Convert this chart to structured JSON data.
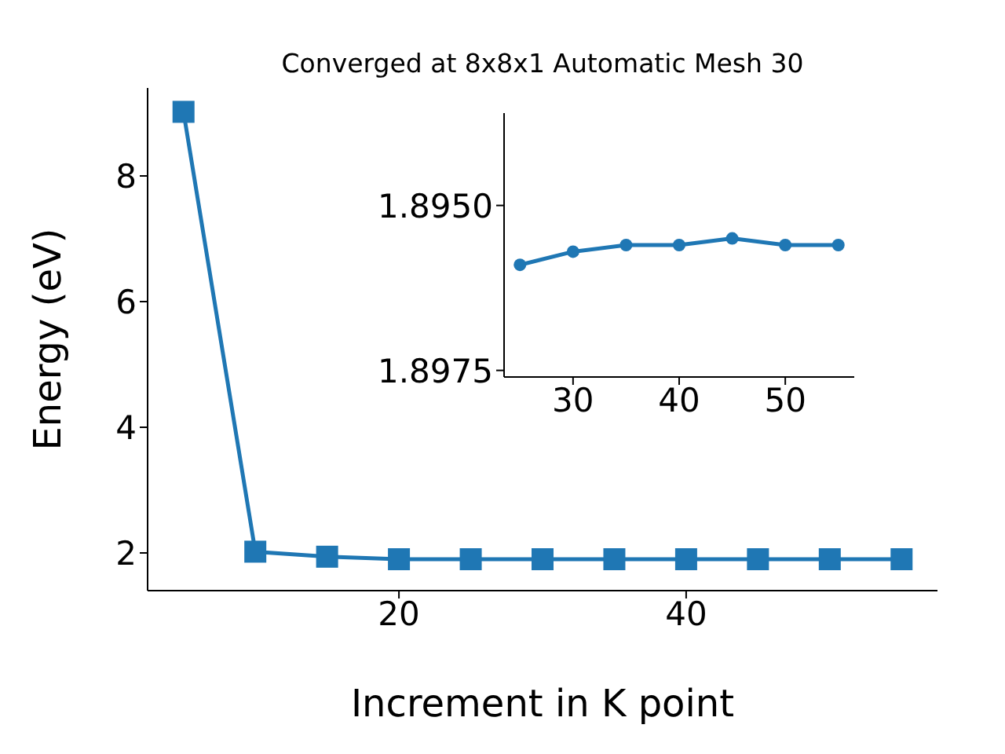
{
  "chart_data": [
    {
      "type": "line",
      "title": "Converged at 8x8x1 Automatic Mesh 30",
      "xlabel": "Increment in K point",
      "ylabel": "Energy (eV)",
      "marker": "square",
      "line_style": "solid",
      "xlim": [
        2.5,
        57.5
      ],
      "xticks": [
        20,
        40
      ],
      "ylim": [
        1.4,
        9.4
      ],
      "yticks": [
        2,
        4,
        6,
        8
      ],
      "x": [
        5,
        10,
        15,
        20,
        25,
        30,
        35,
        40,
        45,
        50,
        55
      ],
      "series": [
        {
          "color": "#1f77b4",
          "values": [
            9.02,
            2.02,
            1.94,
            1.9,
            1.9,
            1.9,
            1.9,
            1.9,
            1.9,
            1.9,
            1.9
          ]
        }
      ]
    },
    {
      "type": "line",
      "marker": "circle",
      "line_style": "solid",
      "xlim": [
        23.5,
        56.5
      ],
      "xticks": [
        30,
        40,
        50
      ],
      "ylim": [
        1.8976,
        1.8936
      ],
      "yticks": [
        {
          "value": 1.895,
          "label": "1.8950"
        },
        {
          "value": 1.8975,
          "label": "1.8975"
        }
      ],
      "x": [
        25,
        30,
        35,
        40,
        45,
        50,
        55
      ],
      "series": [
        {
          "color": "#1f77b4",
          "values": [
            1.8959,
            1.8957,
            1.8956,
            1.8956,
            1.8955,
            1.8956,
            1.8956
          ]
        }
      ]
    }
  ]
}
